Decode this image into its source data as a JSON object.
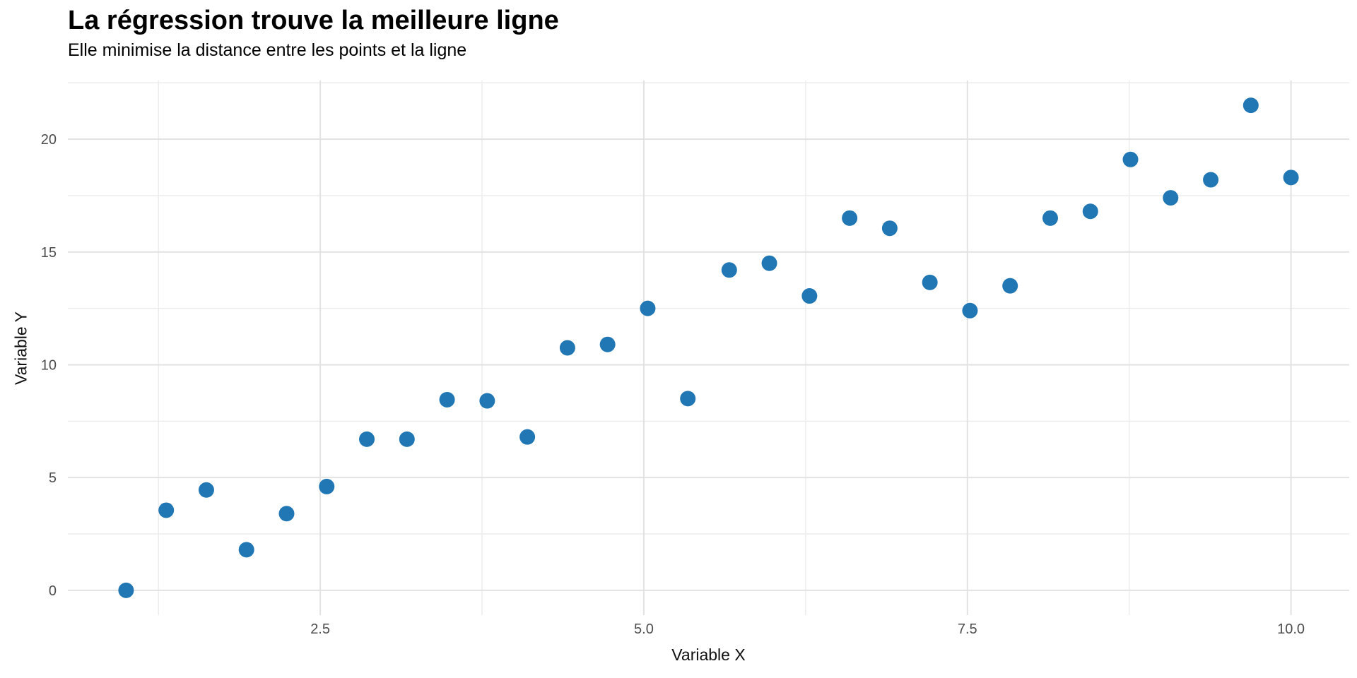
{
  "header": {
    "title": "La régression trouve la meilleure ligne",
    "subtitle": "Elle minimise la distance entre les points et la ligne"
  },
  "chart_data": {
    "type": "scatter",
    "title": "La régression trouve la meilleure ligne",
    "subtitle": "Elle minimise la distance entre les points et la ligne",
    "xlabel": "Variable X",
    "ylabel": "Variable Y",
    "xlim": [
      0.55,
      10.45
    ],
    "ylim": [
      -1.1,
      22.6
    ],
    "grid": "major+minor",
    "legend_position": "none",
    "x_ticks": {
      "values": [
        2.5,
        5.0,
        7.5,
        10.0
      ],
      "labels": [
        "2.5",
        "5.0",
        "7.5",
        "10.0"
      ]
    },
    "x_minor_ticks": [
      1.25,
      3.75,
      6.25,
      8.75
    ],
    "y_ticks": {
      "values": [
        0,
        5,
        10,
        15,
        20
      ],
      "labels": [
        "0",
        "5",
        "10",
        "15",
        "20"
      ]
    },
    "y_minor_ticks": [
      2.5,
      7.5,
      12.5,
      17.5,
      22.5
    ],
    "point_color": "#2177B4",
    "points": [
      [
        1.0,
        0.0
      ],
      [
        1.31,
        3.55
      ],
      [
        1.62,
        4.45
      ],
      [
        1.93,
        1.8
      ],
      [
        2.24,
        3.4
      ],
      [
        2.55,
        4.6
      ],
      [
        2.86,
        6.7
      ],
      [
        3.17,
        6.7
      ],
      [
        3.48,
        8.45
      ],
      [
        3.79,
        8.4
      ],
      [
        4.1,
        6.8
      ],
      [
        4.41,
        10.75
      ],
      [
        4.72,
        10.9
      ],
      [
        5.03,
        12.5
      ],
      [
        5.34,
        8.5
      ],
      [
        5.66,
        14.2
      ],
      [
        5.97,
        14.5
      ],
      [
        6.28,
        13.05
      ],
      [
        6.59,
        16.5
      ],
      [
        6.9,
        16.05
      ],
      [
        7.21,
        13.65
      ],
      [
        7.52,
        12.4
      ],
      [
        7.83,
        13.5
      ],
      [
        8.14,
        16.5
      ],
      [
        8.45,
        16.8
      ],
      [
        8.76,
        19.1
      ],
      [
        9.07,
        17.4
      ],
      [
        9.38,
        18.2
      ],
      [
        9.69,
        21.5
      ],
      [
        10.0,
        18.3
      ]
    ]
  },
  "colors": {
    "background": "#ffffff",
    "major_grid": "#e2e2e2",
    "minor_grid": "#ebebeb",
    "tick_label": "#4d4d4d",
    "axis_title": "#111111",
    "point": "#2177B4"
  }
}
